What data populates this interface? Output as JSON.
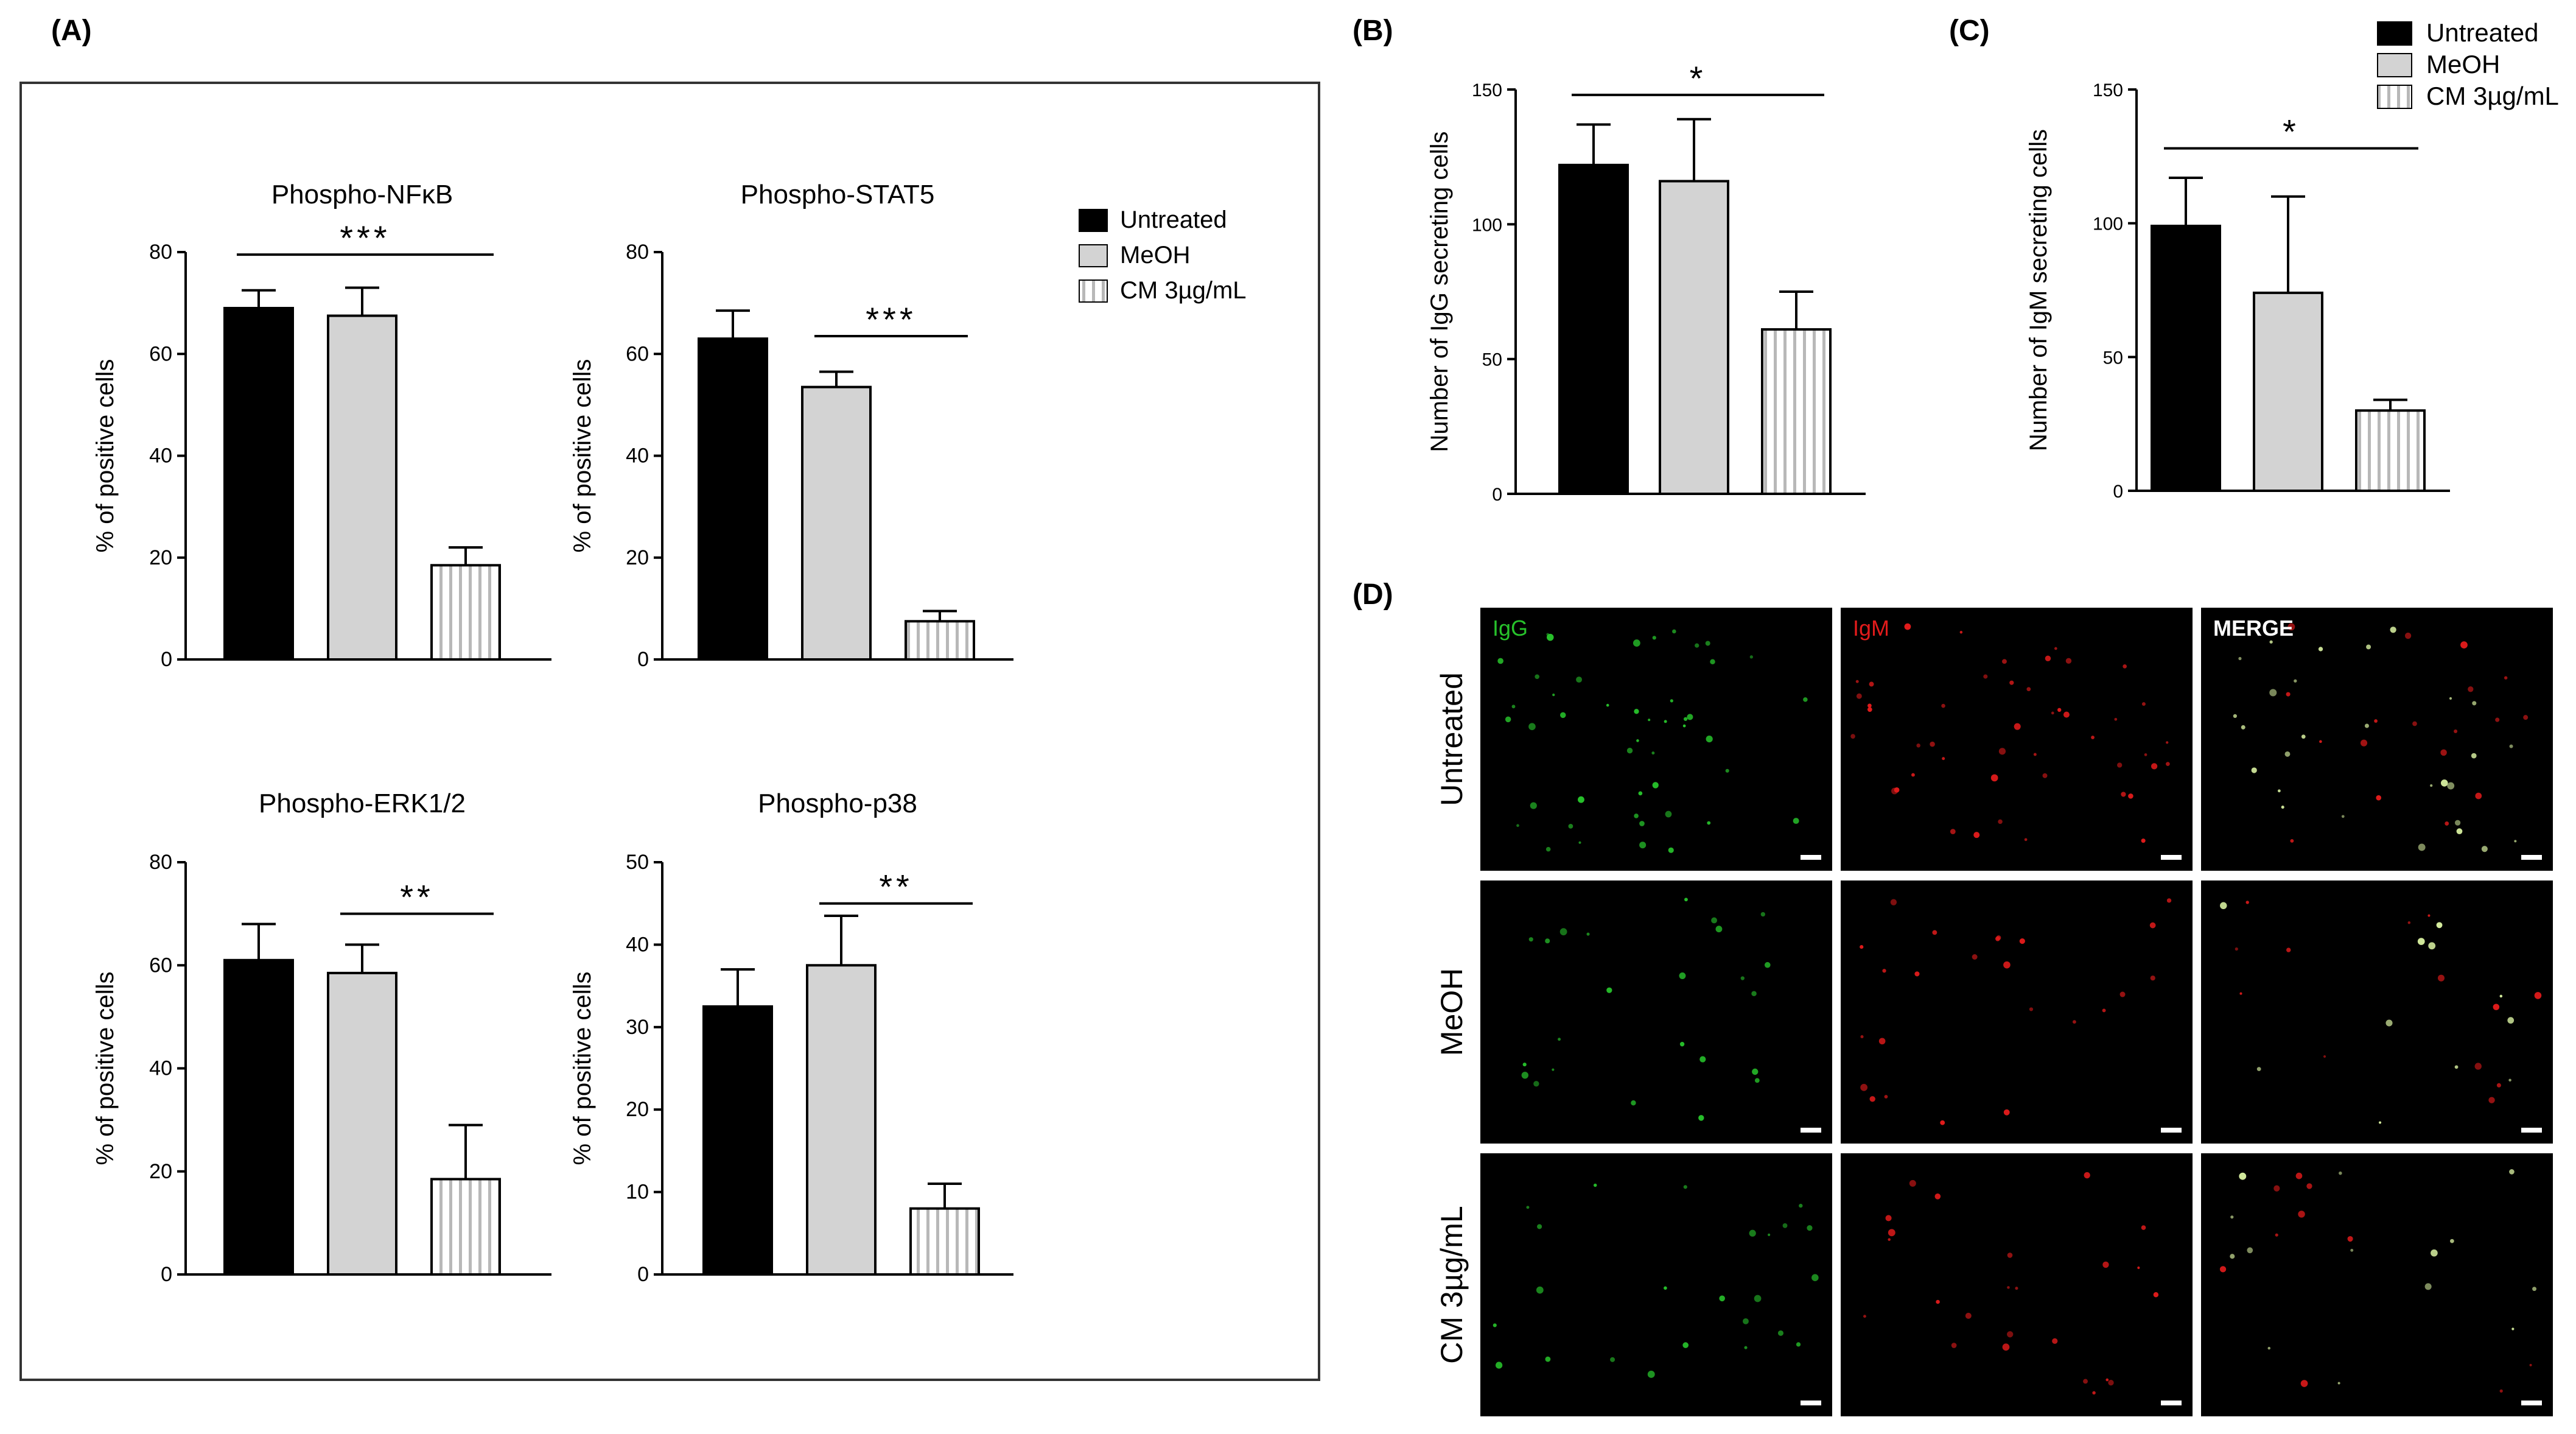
{
  "panel_labels": {
    "a": "(A)",
    "b": "(B)",
    "c": "(C)",
    "d": "(D)"
  },
  "legend_a": [
    "Untreated",
    "MeOH",
    "CM 3µg/mL"
  ],
  "legend_bc": [
    "Untreated",
    "MeOH",
    "CM 3µg/mL"
  ],
  "colors": {
    "untreated": "#000000",
    "meoh": "#d3d3d3",
    "cm_stripe": "#b8b8b8",
    "igg": "#27c22b",
    "igm": "#e11b1b",
    "merge": "#ffffff"
  },
  "chart_data": [
    {
      "id": "nfkb",
      "type": "bar",
      "title": "Phospho-NFκB",
      "xlabel": "",
      "ylabel": "% of positive cells",
      "ylim": [
        0,
        80
      ],
      "yticks": [
        "0",
        "20",
        "40",
        "60",
        "80"
      ],
      "categories": [
        "Untreated",
        "MeOH",
        "CM 3µg/mL"
      ],
      "values": [
        69,
        67.5,
        18.5
      ],
      "errors": [
        3.5,
        5.5,
        3.5
      ],
      "significance": {
        "label": "***",
        "from": 0,
        "to": 2,
        "y": 79.5
      }
    },
    {
      "id": "stat5",
      "type": "bar",
      "title": "Phospho-STAT5",
      "xlabel": "",
      "ylabel": "% of positive cells",
      "ylim": [
        0,
        80
      ],
      "yticks": [
        "0",
        "20",
        "40",
        "60",
        "80"
      ],
      "categories": [
        "Untreated",
        "MeOH",
        "CM 3µg/mL"
      ],
      "values": [
        63,
        53.5,
        7.5
      ],
      "errors": [
        5.5,
        3,
        2
      ],
      "significance": {
        "label": "***",
        "from": 1,
        "to": 2,
        "y": 63.5
      }
    },
    {
      "id": "erk",
      "type": "bar",
      "title": "Phospho-ERK1/2",
      "xlabel": "",
      "ylabel": "% of positive cells",
      "ylim": [
        0,
        80
      ],
      "yticks": [
        "0",
        "20",
        "40",
        "60",
        "80"
      ],
      "categories": [
        "Untreated",
        "MeOH",
        "CM 3µg/mL"
      ],
      "values": [
        61,
        58.5,
        18.5
      ],
      "errors": [
        7,
        5.5,
        10.5
      ],
      "significance": {
        "label": "**",
        "from": 1,
        "to": 2,
        "y": 70
      }
    },
    {
      "id": "p38",
      "type": "bar",
      "title": "Phospho-p38",
      "xlabel": "",
      "ylabel": "% of positive cells",
      "ylim": [
        0,
        50
      ],
      "yticks": [
        "0",
        "10",
        "20",
        "30",
        "40",
        "50"
      ],
      "categories": [
        "Untreated",
        "MeOH",
        "CM 3µg/mL"
      ],
      "values": [
        32.5,
        37.5,
        8
      ],
      "errors": [
        4.5,
        6,
        3
      ],
      "significance": {
        "label": "**",
        "from": 1,
        "to": 2,
        "y": 45
      }
    },
    {
      "id": "igg",
      "type": "bar",
      "title": "",
      "xlabel": "",
      "ylabel": "Number of IgG secreting cells",
      "ylim": [
        0,
        150
      ],
      "yticks": [
        "0",
        "50",
        "100",
        "150"
      ],
      "categories": [
        "Untreated",
        "MeOH",
        "CM 3µg/mL"
      ],
      "values": [
        122,
        116,
        61
      ],
      "errors": [
        15,
        23,
        14
      ],
      "significance": {
        "label": "*",
        "from": 0,
        "to": 2,
        "y": 148
      }
    },
    {
      "id": "igm",
      "type": "bar",
      "title": "",
      "xlabel": "",
      "ylabel": "Number of IgM secreting cells",
      "ylim": [
        0,
        150
      ],
      "yticks": [
        "0",
        "50",
        "100",
        "150"
      ],
      "categories": [
        "Untreated",
        "MeOH",
        "CM 3µg/mL"
      ],
      "values": [
        99,
        74,
        30
      ],
      "errors": [
        18,
        36,
        4
      ],
      "significance": {
        "label": "*",
        "from": 0,
        "to": 2,
        "y": 128
      }
    }
  ],
  "micrographs": {
    "columns": [
      "IgG",
      "IgM",
      "MERGE"
    ],
    "rows": [
      "Untreated",
      "MeOH",
      "CM 3µg/mL"
    ]
  }
}
